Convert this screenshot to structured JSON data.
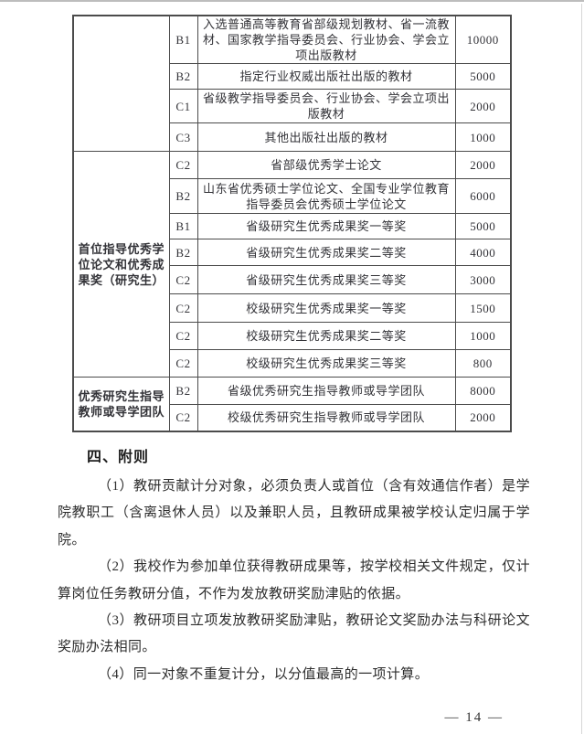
{
  "colors": {
    "table_border": "#4b4b4b",
    "text": "#2d2d2d",
    "page_edge": "#bdbdbd"
  },
  "table": {
    "groups": [
      {
        "category": "",
        "rows": [
          {
            "grade": "B1",
            "desc": "入选普通高等教育省部级规划教材、省一流教材、国家教学指导委员会、行业协会、学会立项出版教材",
            "score": "10000"
          },
          {
            "grade": "B2",
            "desc": "指定行业权威出版社出版的教材",
            "score": "5000"
          },
          {
            "grade": "C1",
            "desc": "省级教学指导委员会、行业协会、学会立项出版教材",
            "score": "2000"
          },
          {
            "grade": "C3",
            "desc": "其他出版社出版的教材",
            "score": "1000"
          }
        ]
      },
      {
        "category": "首位指导优秀学位论文和优秀成果奖（研究生）",
        "rows": [
          {
            "grade": "C2",
            "desc": "省部级优秀学士论文",
            "score": "2000"
          },
          {
            "grade": "B2",
            "desc": "山东省优秀硕士学位论文、全国专业学位教育指导委员会优秀硕士学位论文",
            "score": "6000"
          },
          {
            "grade": "B1",
            "desc": "省级研究生优秀成果奖一等奖",
            "score": "5000"
          },
          {
            "grade": "B2",
            "desc": "省级研究生优秀成果奖二等奖",
            "score": "4000"
          },
          {
            "grade": "C2",
            "desc": "省级研究生优秀成果奖三等奖",
            "score": "3000"
          },
          {
            "grade": "C2",
            "desc": "校级研究生优秀成果奖一等奖",
            "score": "1500"
          },
          {
            "grade": "C2",
            "desc": "校级研究生优秀成果奖二等奖",
            "score": "1000"
          },
          {
            "grade": "C2",
            "desc": "校级研究生优秀成果奖三等奖",
            "score": "800"
          }
        ]
      },
      {
        "category": "优秀研究生指导教师或导学团队",
        "rows": [
          {
            "grade": "B2",
            "desc": "省级优秀研究生指导教师或导学团队",
            "score": "8000"
          },
          {
            "grade": "C2",
            "desc": "校级优秀研究生指导教师或导学团队",
            "score": "2000"
          }
        ]
      }
    ]
  },
  "section": {
    "heading": "四、附则",
    "paragraphs": [
      "（1）教研贡献计分对象，必须负责人或首位（含有效通信作者）是学院教职工（含离退休人员）以及兼职人员，且教研成果被学校认定归属于学院。",
      "（2）我校作为参加单位获得教研成果等，按学校相关文件规定，仅计算岗位任务教研分值，不作为发放教研奖励津贴的依据。",
      "（3）教研项目立项发放教研奖励津贴，教研论文奖励办法与科研论文奖励办法相同。",
      "（4）同一对象不重复计分，以分值最高的一项计算。"
    ]
  },
  "page": {
    "number_label": "— 14 —"
  }
}
